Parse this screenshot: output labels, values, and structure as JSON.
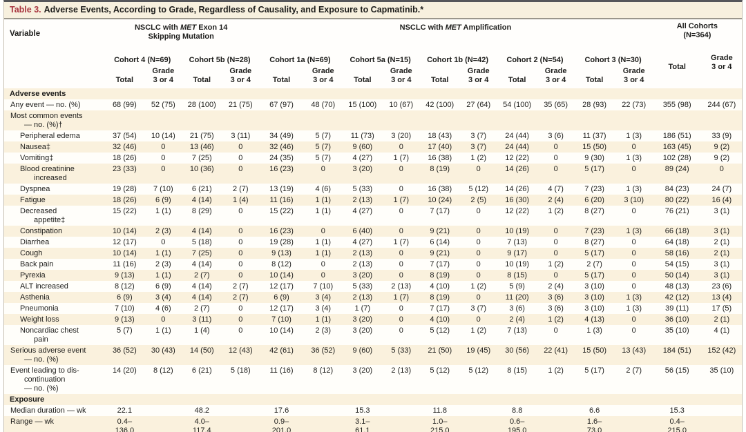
{
  "title": {
    "label": "Table 3.",
    "text": "Adverse Events, According to Grade, Regardless of Causality, and Exposure to Capmatinib.*"
  },
  "header": {
    "variable_label": "Variable",
    "groups": [
      {
        "pre": "NSCLC with",
        "gene": "MET",
        "post": "Exon 14",
        "line2": "Skipping Mutation",
        "span": 4
      },
      {
        "pre": "NSCLC with",
        "gene": "MET",
        "post": "Amplification",
        "line2": "",
        "span": 10
      }
    ],
    "all_cohorts": {
      "title": "All Cohorts\n(N=364)"
    },
    "cohorts": [
      "Cohort 4 (N=69)",
      "Cohort 5b (N=28)",
      "Cohort 1a (N=69)",
      "Cohort 5a (N=15)",
      "Cohort 1b (N=42)",
      "Cohort 2 (N=54)",
      "Cohort 3 (N=30)"
    ],
    "total_label": "Total",
    "grade_label": "Grade\n3 or 4"
  },
  "rows": [
    {
      "type": "section",
      "label": "Adverse events"
    },
    {
      "type": "data",
      "indent": 0,
      "label": [
        "Any event — no. (%)"
      ],
      "cells": [
        "68 (99)",
        "52 (75)",
        "28 (100)",
        "21 (75)",
        "67 (97)",
        "48 (70)",
        "15 (100)",
        "10 (67)",
        "42 (100)",
        "27 (64)",
        "54 (100)",
        "35 (65)",
        "28 (93)",
        "22 (73)",
        "355 (98)",
        "244 (67)"
      ]
    },
    {
      "type": "data",
      "indent": 0,
      "label": [
        "Most common events",
        "— no. (%)†"
      ],
      "cells": [
        "",
        "",
        "",
        "",
        "",
        "",
        "",
        "",
        "",
        "",
        "",
        "",
        "",
        "",
        "",
        ""
      ]
    },
    {
      "type": "data",
      "indent": 1,
      "label": [
        "Peripheral edema"
      ],
      "cells": [
        "37 (54)",
        "10 (14)",
        "21 (75)",
        "3 (11)",
        "34 (49)",
        "5 (7)",
        "11 (73)",
        "3 (20)",
        "18 (43)",
        "3 (7)",
        "24 (44)",
        "3 (6)",
        "11 (37)",
        "1 (3)",
        "186 (51)",
        "33 (9)"
      ]
    },
    {
      "type": "data",
      "indent": 1,
      "label": [
        "Nausea‡"
      ],
      "cells": [
        "32 (46)",
        "0",
        "13 (46)",
        "0",
        "32 (46)",
        "5 (7)",
        "9 (60)",
        "0",
        "17 (40)",
        "3 (7)",
        "24 (44)",
        "0",
        "15 (50)",
        "0",
        "163 (45)",
        "9 (2)"
      ]
    },
    {
      "type": "data",
      "indent": 1,
      "label": [
        "Vomiting‡"
      ],
      "cells": [
        "18 (26)",
        "0",
        "7 (25)",
        "0",
        "24 (35)",
        "5 (7)",
        "4 (27)",
        "1 (7)",
        "16 (38)",
        "1 (2)",
        "12 (22)",
        "0",
        "9 (30)",
        "1 (3)",
        "102 (28)",
        "9 (2)"
      ]
    },
    {
      "type": "data",
      "indent": 1,
      "label": [
        "Blood creatinine",
        "increased"
      ],
      "cells": [
        "23 (33)",
        "0",
        "10 (36)",
        "0",
        "16 (23)",
        "0",
        "3 (20)",
        "0",
        "8 (19)",
        "0",
        "14 (26)",
        "0",
        "5 (17)",
        "0",
        "89 (24)",
        "0"
      ]
    },
    {
      "type": "data",
      "indent": 1,
      "label": [
        "Dyspnea"
      ],
      "cells": [
        "19 (28)",
        "7 (10)",
        "6 (21)",
        "2 (7)",
        "13 (19)",
        "4 (6)",
        "5 (33)",
        "0",
        "16 (38)",
        "5 (12)",
        "14 (26)",
        "4 (7)",
        "7 (23)",
        "1 (3)",
        "84 (23)",
        "24 (7)"
      ]
    },
    {
      "type": "data",
      "indent": 1,
      "label": [
        "Fatigue"
      ],
      "cells": [
        "18 (26)",
        "6 (9)",
        "4 (14)",
        "1 (4)",
        "11 (16)",
        "1 (1)",
        "2 (13)",
        "1 (7)",
        "10 (24)",
        "2 (5)",
        "16 (30)",
        "2 (4)",
        "6 (20)",
        "3 (10)",
        "80 (22)",
        "16 (4)"
      ]
    },
    {
      "type": "data",
      "indent": 1,
      "label": [
        "Decreased",
        "appetite‡"
      ],
      "cells": [
        "15 (22)",
        "1 (1)",
        "8 (29)",
        "0",
        "15 (22)",
        "1 (1)",
        "4 (27)",
        "0",
        "7 (17)",
        "0",
        "12 (22)",
        "1 (2)",
        "8 (27)",
        "0",
        "76 (21)",
        "3 (1)"
      ]
    },
    {
      "type": "data",
      "indent": 1,
      "label": [
        "Constipation"
      ],
      "cells": [
        "10 (14)",
        "2 (3)",
        "4 (14)",
        "0",
        "16 (23)",
        "0",
        "6 (40)",
        "0",
        "9 (21)",
        "0",
        "10 (19)",
        "0",
        "7 (23)",
        "1 (3)",
        "66 (18)",
        "3 (1)"
      ]
    },
    {
      "type": "data",
      "indent": 1,
      "label": [
        "Diarrhea"
      ],
      "cells": [
        "12 (17)",
        "0",
        "5 (18)",
        "0",
        "19 (28)",
        "1 (1)",
        "4 (27)",
        "1 (7)",
        "6 (14)",
        "0",
        "7 (13)",
        "0",
        "8 (27)",
        "0",
        "64 (18)",
        "2 (1)"
      ]
    },
    {
      "type": "data",
      "indent": 1,
      "label": [
        "Cough"
      ],
      "cells": [
        "10 (14)",
        "1 (1)",
        "7 (25)",
        "0",
        "9 (13)",
        "1 (1)",
        "2 (13)",
        "0",
        "9 (21)",
        "0",
        "9 (17)",
        "0",
        "5 (17)",
        "0",
        "58 (16)",
        "2 (1)"
      ]
    },
    {
      "type": "data",
      "indent": 1,
      "label": [
        "Back pain"
      ],
      "cells": [
        "11 (16)",
        "2 (3)",
        "4 (14)",
        "0",
        "8 (12)",
        "0",
        "2 (13)",
        "0",
        "7 (17)",
        "0",
        "10 (19)",
        "1 (2)",
        "2 (7)",
        "0",
        "54 (15)",
        "3 (1)"
      ]
    },
    {
      "type": "data",
      "indent": 1,
      "label": [
        "Pyrexia"
      ],
      "cells": [
        "9 (13)",
        "1 (1)",
        "2 (7)",
        "0",
        "10 (14)",
        "0",
        "3 (20)",
        "0",
        "8 (19)",
        "0",
        "8 (15)",
        "0",
        "5 (17)",
        "0",
        "50 (14)",
        "3 (1)"
      ]
    },
    {
      "type": "data",
      "indent": 1,
      "label": [
        "ALT increased"
      ],
      "cells": [
        "8 (12)",
        "6 (9)",
        "4 (14)",
        "2 (7)",
        "12 (17)",
        "7 (10)",
        "5 (33)",
        "2 (13)",
        "4 (10)",
        "1 (2)",
        "5 (9)",
        "2 (4)",
        "3 (10)",
        "0",
        "48 (13)",
        "23 (6)"
      ]
    },
    {
      "type": "data",
      "indent": 1,
      "label": [
        "Asthenia"
      ],
      "cells": [
        "6 (9)",
        "3 (4)",
        "4 (14)",
        "2 (7)",
        "6 (9)",
        "3 (4)",
        "2 (13)",
        "1 (7)",
        "8 (19)",
        "0",
        "11 (20)",
        "3 (6)",
        "3 (10)",
        "1 (3)",
        "42 (12)",
        "13 (4)"
      ]
    },
    {
      "type": "data",
      "indent": 1,
      "label": [
        "Pneumonia"
      ],
      "cells": [
        "7 (10)",
        "4 (6)",
        "2 (7)",
        "0",
        "12 (17)",
        "3 (4)",
        "1 (7)",
        "0",
        "7 (17)",
        "3 (7)",
        "3 (6)",
        "3 (6)",
        "3 (10)",
        "1 (3)",
        "39 (11)",
        "17 (5)"
      ]
    },
    {
      "type": "data",
      "indent": 1,
      "label": [
        "Weight loss"
      ],
      "cells": [
        "9 (13)",
        "0",
        "3 (11)",
        "0",
        "7 (10)",
        "1 (1)",
        "3 (20)",
        "0",
        "4 (10)",
        "0",
        "2 (4)",
        "1 (2)",
        "4 (13)",
        "0",
        "36 (10)",
        "2 (1)"
      ]
    },
    {
      "type": "data",
      "indent": 1,
      "label": [
        "Noncardiac chest",
        "pain"
      ],
      "cells": [
        "5 (7)",
        "1 (1)",
        "1 (4)",
        "0",
        "10 (14)",
        "2 (3)",
        "3 (20)",
        "0",
        "5 (12)",
        "1 (2)",
        "7 (13)",
        "0",
        "1 (3)",
        "0",
        "35 (10)",
        "4 (1)"
      ]
    },
    {
      "type": "data",
      "indent": 0,
      "label": [
        "Serious adverse event",
        "— no. (%)"
      ],
      "cells": [
        "36 (52)",
        "30 (43)",
        "14 (50)",
        "12 (43)",
        "42 (61)",
        "36 (52)",
        "9 (60)",
        "5 (33)",
        "21 (50)",
        "19 (45)",
        "30 (56)",
        "22 (41)",
        "15 (50)",
        "13 (43)",
        "184 (51)",
        "152 (42)"
      ]
    },
    {
      "type": "data",
      "indent": 0,
      "label": [
        "Event leading to dis-",
        "continuation",
        "— no. (%)"
      ],
      "cells": [
        "14 (20)",
        "8 (12)",
        "6 (21)",
        "5 (18)",
        "11 (16)",
        "8 (12)",
        "3 (20)",
        "2 (13)",
        "5 (12)",
        "5 (12)",
        "8 (15)",
        "1 (2)",
        "5 (17)",
        "2 (7)",
        "56 (15)",
        "35 (10)"
      ]
    },
    {
      "type": "section",
      "label": "Exposure"
    },
    {
      "type": "data",
      "indent": 0,
      "label": [
        "Median duration — wk"
      ],
      "cells": [
        "22.1",
        "",
        "48.2",
        "",
        "17.6",
        "",
        "15.3",
        "",
        "11.8",
        "",
        "8.8",
        "",
        "6.6",
        "",
        "15.3",
        ""
      ]
    },
    {
      "type": "data",
      "indent": 0,
      "label": [
        "Range — wk"
      ],
      "cells": [
        "0.4–\n136.0",
        "",
        "4.0–\n117.4",
        "",
        "0.9–\n201.0",
        "",
        "3.1–\n61.1",
        "",
        "1.0–\n215.0",
        "",
        "0.6–\n195.0",
        "",
        "1.6–\n73.0",
        "",
        "0.4–\n215.0",
        ""
      ]
    }
  ],
  "colors": {
    "title_accent": "#a8353f",
    "stripe_beige": "#faf1dd",
    "stripe_white": "#fffefa",
    "rule_dark": "#55565a"
  }
}
